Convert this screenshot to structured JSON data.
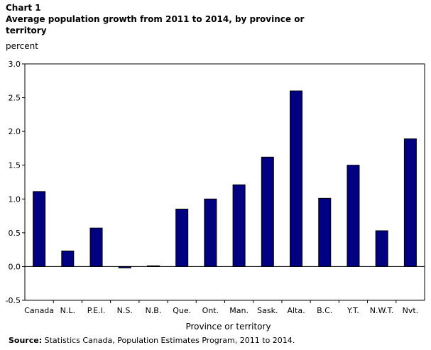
{
  "chart": {
    "number": "Chart 1",
    "title": "Average population  growth from 2011 to 2014, by province or territory"
  },
  "chart_data": {
    "type": "bar",
    "title": "Average population  growth from 2011 to 2014, by province or territory",
    "ylabel": "percent",
    "xlabel": "Province or territory",
    "ylim": [
      -0.5,
      3.0
    ],
    "yticks": [
      "3.0",
      "2.5",
      "2.0",
      "1.5",
      "1.0",
      "0.5",
      "0.0",
      "-0.5"
    ],
    "ytick_values": [
      3.0,
      2.5,
      2.0,
      1.5,
      1.0,
      0.5,
      0.0,
      -0.5
    ],
    "categories": [
      "Canada",
      "N.L.",
      "P.E.I.",
      "N.S.",
      "N.B.",
      "Que.",
      "Ont.",
      "Man.",
      "Sask.",
      "Alta.",
      "B.C.",
      "Y.T.",
      "N.W.T.",
      "Nvt."
    ],
    "values": [
      1.11,
      0.23,
      0.57,
      -0.02,
      0.01,
      0.85,
      1.0,
      1.21,
      1.62,
      2.6,
      1.01,
      1.5,
      0.53,
      1.89
    ],
    "bar_color": "#000080",
    "grid": false,
    "legend": "none"
  },
  "source": {
    "label": "Source:",
    "text": " Statistics Canada, Population Estimates Program, 2011 to 2014."
  }
}
